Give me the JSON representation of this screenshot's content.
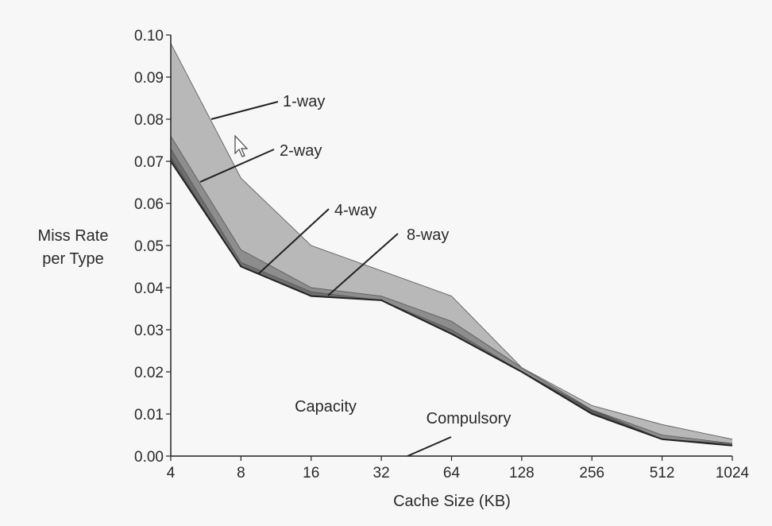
{
  "chart_data": {
    "type": "area",
    "xlabel": "Cache Size (KB)",
    "ylabel": [
      "Miss Rate",
      "per Type"
    ],
    "categories": [
      "4",
      "8",
      "16",
      "32",
      "64",
      "128",
      "256",
      "512",
      "1024"
    ],
    "ylim": [
      0,
      0.1
    ],
    "yticks": [
      "0.00",
      "0.01",
      "0.02",
      "0.03",
      "0.04",
      "0.05",
      "0.06",
      "0.07",
      "0.08",
      "0.09",
      "0.10"
    ],
    "series": [
      {
        "name": "1-way",
        "values": [
          0.098,
          0.066,
          0.05,
          0.044,
          0.038,
          0.021,
          0.012,
          0.0075,
          0.004
        ]
      },
      {
        "name": "2-way",
        "values": [
          0.076,
          0.049,
          0.04,
          0.038,
          0.032,
          0.021,
          0.011,
          0.005,
          0.003
        ]
      },
      {
        "name": "4-way",
        "values": [
          0.073,
          0.046,
          0.039,
          0.037,
          0.03,
          0.02,
          0.011,
          0.004,
          0.003
        ]
      },
      {
        "name": "8-way",
        "values": [
          0.071,
          0.045,
          0.038,
          0.037,
          0.029,
          0.02,
          0.011,
          0.004,
          0.0025
        ]
      },
      {
        "name": "Capacity",
        "values": [
          0.07,
          0.045,
          0.038,
          0.037,
          0.029,
          0.02,
          0.01,
          0.004,
          0.0025
        ]
      },
      {
        "name": "Compulsory",
        "values": [
          0.0001,
          0.0001,
          0.0001,
          0.0001,
          0.0001,
          0.0001,
          0.0001,
          0.0001,
          0.0001
        ]
      }
    ],
    "annotations": [
      "1-way",
      "2-way",
      "4-way",
      "8-way",
      "Capacity",
      "Compulsory"
    ],
    "colors": {
      "band_1way": "#b8b8b8",
      "band_2way": "#8d8d8d",
      "band_4way": "#6e6e6e",
      "band_8way": "#5a5a5a",
      "lines": "#222222",
      "background": "#f7f7f7"
    },
    "grid": false,
    "legend": "none"
  }
}
